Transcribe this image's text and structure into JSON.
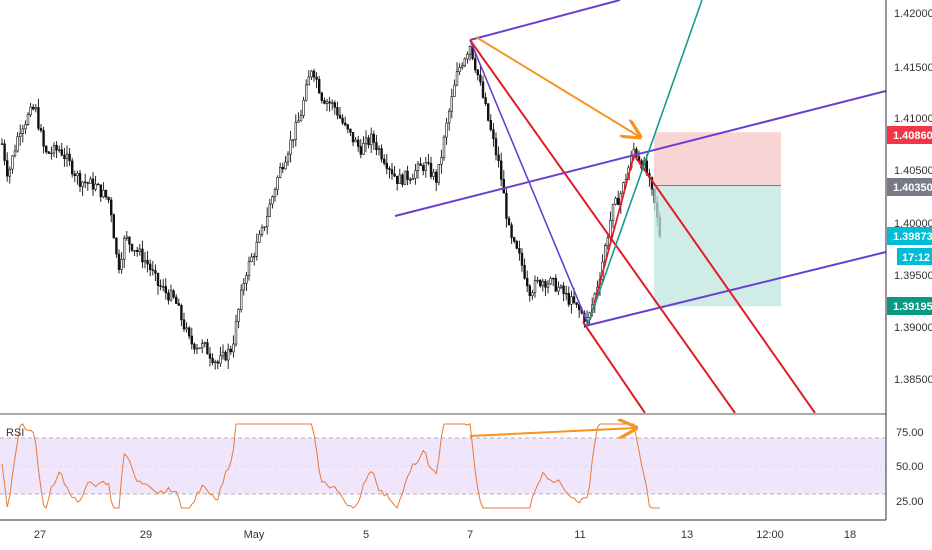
{
  "chart_data": {
    "type": "candlestick",
    "price_axis": {
      "ticks": [
        "1.42000",
        "1.41500",
        "1.41000",
        "1.40500",
        "1.40000",
        "1.39500",
        "1.39000",
        "1.38500"
      ],
      "ylim": [
        1.3805,
        1.4225
      ]
    },
    "time_axis": {
      "ticks": [
        "27",
        "29",
        "May",
        "5",
        "7",
        "11",
        "13",
        "12:00",
        "18"
      ]
    },
    "price_labels": [
      {
        "value": "1.40860",
        "color": "#f23645"
      },
      {
        "value": "1.40350",
        "color": "#787b86"
      },
      {
        "value": "1.39873",
        "color": "#00bcd4"
      },
      {
        "value": "17:12",
        "color": "#00bcd4"
      },
      {
        "value": "1.39195",
        "color": "#089981"
      }
    ],
    "position": {
      "stop": 1.4086,
      "entry": 1.4035,
      "target": 1.39195
    },
    "rsi": {
      "label": "RSI",
      "ticks": [
        "75.00",
        "50.00",
        "25.00"
      ],
      "upper": 70,
      "lower": 30
    },
    "colors": {
      "pitchfork": "#6a3fd0",
      "red_lines": "#e01e28",
      "teal_line": "#159b8e",
      "arrow": "#f7931e",
      "rsi_line": "#e8793a",
      "rsi_band": "#f0e6fb"
    }
  }
}
